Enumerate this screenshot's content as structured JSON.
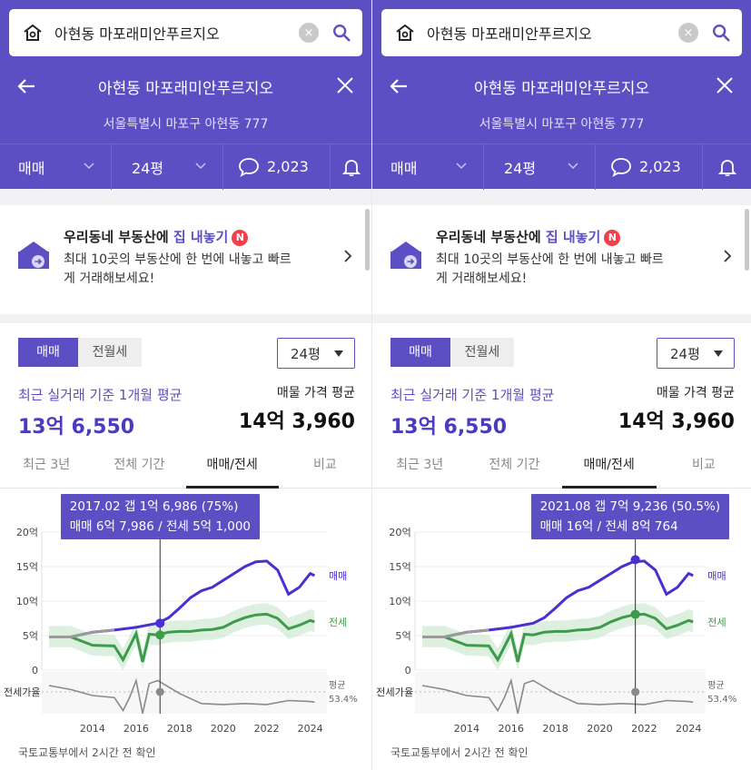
{
  "search": {
    "query": "아현동 마포래미안푸르지오",
    "clear_label": "×"
  },
  "header": {
    "title": "아현동 마포래미안푸르지오",
    "address": "서울특별시 마포구 아현동 777"
  },
  "filters": {
    "deal_type": "매매",
    "size": "24평",
    "comment_count": "2,023"
  },
  "promo": {
    "line1_prefix": "우리동네 부동산에 ",
    "line1_highlight": "집 내놓기",
    "badge": "N",
    "line2": "최대 10곳의 부동산에 한 번에 내놓고 빠르게 거래해보세요!"
  },
  "summary": {
    "seg_sale": "매매",
    "seg_rent": "전월세",
    "size_select": "24평",
    "recent_label": "최근 실거래 기준 1개월 평균",
    "recent_value": "13억 6,550",
    "listing_label": "매물 가격 평균",
    "listing_value": "14억 3,960"
  },
  "period_tabs": [
    "최근 3년",
    "전체 기간",
    "매매/전세",
    "비교"
  ],
  "active_tab_index": 2,
  "panels": [
    {
      "tooltip_line1": "2017.02  갭 1억 6,986 (75%)",
      "tooltip_line2": "매매 6억 7,986 / 전세 5억 1,000",
      "cursor_year": 2017.1,
      "sale_at_cursor": 6.8,
      "jeonse_at_cursor": 5.1
    },
    {
      "tooltip_line1": "2021.08  갭 7억 9,236 (50.5%)",
      "tooltip_line2": "매매 16억 / 전세 8억 764",
      "cursor_year": 2021.6,
      "sale_at_cursor": 16.0,
      "jeonse_at_cursor": 8.08
    }
  ],
  "chart_data": {
    "type": "line",
    "x_ticks": [
      2014,
      2016,
      2018,
      2020,
      2022,
      2024
    ],
    "y_ticks": [
      "20억",
      "15억",
      "10억",
      "5억",
      "0"
    ],
    "ylim": [
      0,
      20
    ],
    "series": [
      {
        "name": "매매",
        "color": "#4a2fd1",
        "x": [
          2012.0,
          2013.0,
          2014.0,
          2015.0,
          2016.0,
          2017.0,
          2017.5,
          2018.0,
          2018.5,
          2019.0,
          2019.5,
          2020.0,
          2020.5,
          2021.0,
          2021.5,
          2022.0,
          2022.5,
          2023.0,
          2023.5,
          2024.0,
          2024.2
        ],
        "values": [
          4.8,
          4.8,
          5.5,
          5.8,
          6.2,
          6.8,
          7.6,
          9.0,
          10.5,
          11.5,
          12.0,
          13.0,
          14.0,
          15.0,
          15.7,
          15.8,
          14.5,
          11.0,
          12.0,
          14.0,
          13.7
        ]
      },
      {
        "name": "전세",
        "color": "#3f9b4c",
        "x": [
          2012.0,
          2013.0,
          2014.0,
          2015.0,
          2015.4,
          2015.7,
          2016.0,
          2016.3,
          2016.6,
          2017.0,
          2017.5,
          2018.0,
          2018.5,
          2019.0,
          2019.5,
          2020.0,
          2020.5,
          2021.0,
          2021.5,
          2022.0,
          2022.5,
          2023.0,
          2023.5,
          2024.0,
          2024.2
        ],
        "values": [
          4.8,
          4.8,
          3.6,
          3.5,
          1.5,
          3.4,
          5.3,
          1.2,
          5.2,
          5.1,
          5.5,
          5.6,
          5.6,
          5.8,
          5.9,
          6.2,
          7.0,
          7.6,
          8.0,
          8.1,
          7.5,
          6.0,
          6.5,
          7.2,
          7.0
        ]
      },
      {
        "name": "전세가율",
        "color": "#8a8a8a",
        "x": [
          2012.0,
          2013.0,
          2014.0,
          2015.0,
          2015.4,
          2015.7,
          2016.0,
          2016.3,
          2016.6,
          2017.0,
          2018.0,
          2019.0,
          2020.0,
          2021.0,
          2022.0,
          2023.0,
          2024.0,
          2024.2
        ],
        "values": [
          70,
          66,
          60,
          58,
          45,
          58,
          75,
          42,
          72,
          75,
          62,
          52,
          51,
          52,
          51,
          55,
          54,
          53.4
        ]
      }
    ],
    "ratio_label": "전세가율",
    "ratio_avg_label": "평균",
    "ratio_avg_value": "53.4%",
    "sale_label": "매매",
    "jeonse_label": "전세"
  },
  "footer": {
    "source": "국토교통부에서 2시간 전 확인"
  }
}
